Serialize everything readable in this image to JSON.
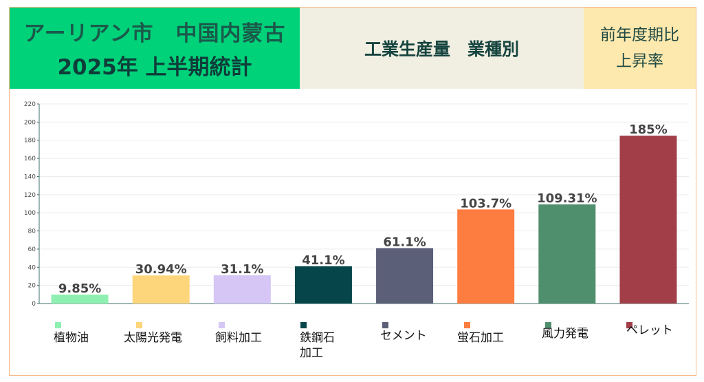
{
  "header": {
    "left_line1": "アーリアン市　中国内蒙古",
    "left_line2": "2025年 上半期統計",
    "mid": "工業生産量　業種別",
    "right_line1": "前年度期比",
    "right_line2": "上昇率"
  },
  "chart_data": {
    "type": "bar",
    "title": "工業生産量　業種別",
    "categories": [
      "植物油",
      "太陽光発電",
      "飼料加工",
      "鉄鋼石\n加工",
      "セメント",
      "蛍石加工",
      "風力発電",
      "ペレット"
    ],
    "values": [
      9.85,
      30.94,
      31.1,
      41.1,
      61.1,
      103.7,
      109.31,
      185
    ],
    "data_labels": [
      "9.85%",
      "30.94%",
      "31.1%",
      "41.1%",
      "61.1%",
      "103.7%",
      "109.31%",
      "185%"
    ],
    "colors": [
      "#8ef0b0",
      "#fdd57a",
      "#d5c6f5",
      "#06464a",
      "#5c5f78",
      "#fd7c40",
      "#4f8f6e",
      "#a23e48"
    ],
    "ylim": [
      0,
      220
    ],
    "yticks": [
      0,
      20,
      40,
      60,
      80,
      100,
      120,
      140,
      160,
      180,
      200,
      220
    ],
    "grid": true,
    "legend": "bottom"
  }
}
